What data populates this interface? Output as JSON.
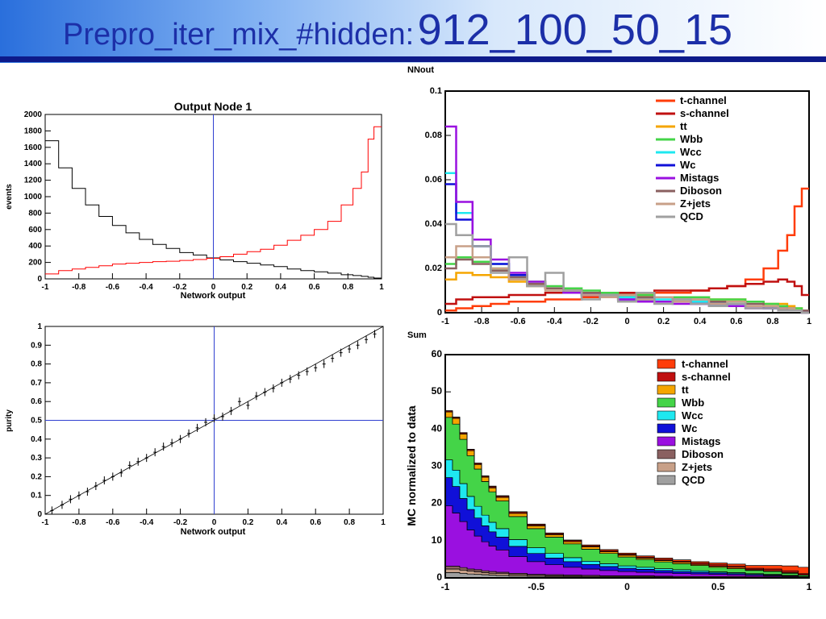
{
  "header": {
    "title_prefix": "Prepro_iter_mix_#hidden:",
    "title_suffix": "912_100_50_15"
  },
  "colors": {
    "t-channel": "#ff3d0a",
    "s-channel": "#c01010",
    "tt": "#f5a500",
    "Wbb": "#44d448",
    "Wcc": "#1ee8f0",
    "Wc": "#1010d8",
    "Mistags": "#9a10e0",
    "Diboson": "#8a6060",
    "Z+jets": "#c8a088",
    "QCD": "#a0a0a0"
  },
  "chart_data": [
    {
      "id": "output-node",
      "type": "line",
      "title": "Output Node 1",
      "xlabel": "Network output",
      "ylabel": "events",
      "xlim": [
        -1,
        1
      ],
      "ylim": [
        0,
        2000
      ],
      "xticks": [
        "-1",
        "-0.8",
        "-0.6",
        "-0.4",
        "-0.2",
        "0",
        "0.2",
        "0.4",
        "0.6",
        "0.8",
        "1"
      ],
      "yticks": [
        "0",
        "200",
        "400",
        "600",
        "800",
        "1000",
        "1200",
        "1400",
        "1600",
        "1800",
        "2000"
      ],
      "vline": 0,
      "x": [
        -0.96,
        -0.88,
        -0.8,
        -0.72,
        -0.64,
        -0.56,
        -0.48,
        -0.4,
        -0.32,
        -0.24,
        -0.16,
        -0.08,
        0,
        0.08,
        0.16,
        0.24,
        0.32,
        0.4,
        0.48,
        0.56,
        0.64,
        0.72,
        0.8,
        0.86,
        0.9,
        0.94,
        0.97
      ],
      "series": [
        {
          "color": "black",
          "values": [
            1680,
            1350,
            1100,
            900,
            760,
            650,
            560,
            480,
            420,
            370,
            320,
            290,
            255,
            230,
            210,
            190,
            170,
            150,
            120,
            100,
            85,
            70,
            50,
            40,
            30,
            20,
            10
          ]
        },
        {
          "color": "red",
          "values": [
            60,
            100,
            120,
            140,
            160,
            180,
            190,
            200,
            210,
            215,
            225,
            235,
            250,
            270,
            300,
            330,
            360,
            410,
            470,
            530,
            600,
            700,
            900,
            1100,
            1300,
            1700,
            1850
          ]
        }
      ]
    },
    {
      "id": "purity",
      "type": "scatter",
      "xlabel": "Network output",
      "ylabel": "purity",
      "xlim": [
        -1,
        1
      ],
      "ylim": [
        0,
        1
      ],
      "xticks": [
        "-1",
        "-0.8",
        "-0.6",
        "-0.4",
        "-0.2",
        "0",
        "0.2",
        "0.4",
        "0.6",
        "0.8",
        "1"
      ],
      "yticks": [
        "0",
        "0.1",
        "0.2",
        "0.3",
        "0.4",
        "0.5",
        "0.6",
        "0.7",
        "0.8",
        "0.9",
        "1"
      ],
      "vline": 0,
      "hline": 0.5,
      "fit": [
        [
          -1,
          0
        ],
        [
          1,
          1
        ]
      ],
      "x": [
        -0.96,
        -0.9,
        -0.85,
        -0.8,
        -0.75,
        -0.7,
        -0.65,
        -0.6,
        -0.55,
        -0.5,
        -0.45,
        -0.4,
        -0.35,
        -0.3,
        -0.25,
        -0.2,
        -0.15,
        -0.1,
        -0.05,
        0,
        0.05,
        0.1,
        0.15,
        0.2,
        0.25,
        0.3,
        0.35,
        0.4,
        0.45,
        0.5,
        0.55,
        0.6,
        0.65,
        0.7,
        0.75,
        0.8,
        0.85,
        0.9,
        0.95
      ],
      "y": [
        0.02,
        0.05,
        0.08,
        0.1,
        0.12,
        0.15,
        0.18,
        0.2,
        0.22,
        0.26,
        0.28,
        0.3,
        0.33,
        0.36,
        0.38,
        0.4,
        0.43,
        0.46,
        0.49,
        0.51,
        0.52,
        0.55,
        0.6,
        0.58,
        0.63,
        0.65,
        0.67,
        0.7,
        0.72,
        0.74,
        0.76,
        0.78,
        0.8,
        0.83,
        0.86,
        0.88,
        0.9,
        0.93,
        0.96
      ]
    },
    {
      "id": "nnout",
      "type": "line",
      "title": "NNout",
      "xlim": [
        -1,
        1
      ],
      "ylim": [
        0,
        0.1
      ],
      "xticks": [
        "-1",
        "-0.8",
        "-0.6",
        "-0.4",
        "-0.2",
        "0",
        "0.2",
        "0.4",
        "0.6",
        "0.8",
        "1"
      ],
      "yticks": [
        "0",
        "0.02",
        "0.04",
        "0.06",
        "0.08",
        "0.1"
      ],
      "legend": [
        "t-channel",
        "s-channel",
        "tt",
        "Wbb",
        "Wcc",
        "Wc",
        "Mistags",
        "Diboson",
        "Z+jets",
        "QCD"
      ],
      "x": [
        -0.98,
        -0.9,
        -0.8,
        -0.7,
        -0.6,
        -0.5,
        -0.4,
        -0.3,
        -0.2,
        -0.1,
        0,
        0.1,
        0.2,
        0.3,
        0.4,
        0.5,
        0.6,
        0.7,
        0.8,
        0.86,
        0.9,
        0.94,
        0.98
      ],
      "series": [
        {
          "name": "t-channel",
          "values": [
            0.001,
            0.002,
            0.003,
            0.004,
            0.005,
            0.005,
            0.006,
            0.006,
            0.007,
            0.007,
            0.008,
            0.008,
            0.009,
            0.009,
            0.01,
            0.011,
            0.012,
            0.015,
            0.02,
            0.028,
            0.035,
            0.048,
            0.056
          ]
        },
        {
          "name": "s-channel",
          "values": [
            0.004,
            0.006,
            0.007,
            0.007,
            0.008,
            0.008,
            0.009,
            0.009,
            0.009,
            0.009,
            0.009,
            0.009,
            0.01,
            0.01,
            0.01,
            0.011,
            0.012,
            0.013,
            0.014,
            0.015,
            0.014,
            0.012,
            0.008
          ]
        },
        {
          "name": "tt",
          "values": [
            0.015,
            0.018,
            0.017,
            0.016,
            0.014,
            0.012,
            0.011,
            0.01,
            0.009,
            0.009,
            0.008,
            0.008,
            0.007,
            0.007,
            0.007,
            0.006,
            0.006,
            0.005,
            0.004,
            0.004,
            0.003,
            0.002,
            0.001
          ]
        },
        {
          "name": "Wbb",
          "values": [
            0.022,
            0.025,
            0.023,
            0.02,
            0.017,
            0.014,
            0.012,
            0.011,
            0.01,
            0.009,
            0.008,
            0.008,
            0.007,
            0.007,
            0.007,
            0.006,
            0.006,
            0.005,
            0.004,
            0.003,
            0.002,
            0.002,
            0.001
          ]
        },
        {
          "name": "Wcc",
          "values": [
            0.063,
            0.045,
            0.03,
            0.022,
            0.016,
            0.013,
            0.011,
            0.009,
            0.008,
            0.008,
            0.007,
            0.006,
            0.006,
            0.005,
            0.005,
            0.004,
            0.004,
            0.003,
            0.002,
            0.002,
            0.001,
            0.001,
            0.0
          ]
        },
        {
          "name": "Wc",
          "values": [
            0.058,
            0.042,
            0.03,
            0.022,
            0.017,
            0.013,
            0.011,
            0.009,
            0.008,
            0.007,
            0.006,
            0.006,
            0.005,
            0.005,
            0.004,
            0.004,
            0.003,
            0.003,
            0.002,
            0.002,
            0.001,
            0.001,
            0.0
          ]
        },
        {
          "name": "Mistags",
          "values": [
            0.084,
            0.05,
            0.033,
            0.024,
            0.018,
            0.014,
            0.011,
            0.009,
            0.008,
            0.007,
            0.006,
            0.005,
            0.005,
            0.004,
            0.004,
            0.003,
            0.003,
            0.002,
            0.002,
            0.001,
            0.001,
            0.001,
            0.0
          ]
        },
        {
          "name": "Diboson",
          "values": [
            0.02,
            0.024,
            0.022,
            0.019,
            0.016,
            0.013,
            0.011,
            0.01,
            0.009,
            0.008,
            0.008,
            0.007,
            0.007,
            0.006,
            0.006,
            0.005,
            0.005,
            0.004,
            0.003,
            0.002,
            0.002,
            0.001,
            0.001
          ]
        },
        {
          "name": "Z+jets",
          "values": [
            0.025,
            0.03,
            0.025,
            0.02,
            0.015,
            0.012,
            0.01,
            0.01,
            0.008,
            0.007,
            0.008,
            0.006,
            0.007,
            0.005,
            0.006,
            0.004,
            0.005,
            0.003,
            0.003,
            0.002,
            0.002,
            0.001,
            0.0
          ]
        },
        {
          "name": "QCD",
          "values": [
            0.04,
            0.035,
            0.03,
            0.018,
            0.025,
            0.012,
            0.018,
            0.01,
            0.006,
            0.008,
            0.005,
            0.009,
            0.004,
            0.006,
            0.004,
            0.003,
            0.004,
            0.002,
            0.002,
            0.001,
            0.001,
            0.001,
            0.0
          ]
        }
      ]
    },
    {
      "id": "sum",
      "type": "area",
      "title": "Sum",
      "ylabel": "MC normalized to data",
      "xlim": [
        -1,
        1
      ],
      "ylim": [
        0,
        63
      ],
      "xticks": [
        "-1",
        "-0.5",
        "0",
        "0.5",
        "1"
      ],
      "yticks": [
        "0",
        "10",
        "20",
        "30",
        "40",
        "50",
        "60"
      ],
      "legend": [
        "t-channel",
        "s-channel",
        "tt",
        "Wbb",
        "Wcc",
        "Wc",
        "Mistags",
        "Diboson",
        "Z+jets",
        "QCD"
      ],
      "x": [
        -0.98,
        -0.94,
        -0.9,
        -0.86,
        -0.82,
        -0.78,
        -0.74,
        -0.7,
        -0.6,
        -0.5,
        -0.4,
        -0.3,
        -0.2,
        -0.1,
        0,
        0.1,
        0.2,
        0.3,
        0.4,
        0.5,
        0.6,
        0.7,
        0.8,
        0.9,
        0.98
      ],
      "series": [
        {
          "name": "QCD",
          "values": [
            1.5,
            1.5,
            1.3,
            1.1,
            1.0,
            0.9,
            0.8,
            0.7,
            0.5,
            0.4,
            0.3,
            0.3,
            0.2,
            0.2,
            0.2,
            0.2,
            0.1,
            0.1,
            0.1,
            0.1,
            0.1,
            0.1,
            0.1,
            0.1,
            0.0
          ]
        },
        {
          "name": "Z+jets",
          "values": [
            1.0,
            1.0,
            0.9,
            0.8,
            0.7,
            0.6,
            0.5,
            0.5,
            0.4,
            0.3,
            0.3,
            0.2,
            0.2,
            0.2,
            0.2,
            0.2,
            0.2,
            0.1,
            0.1,
            0.1,
            0.1,
            0.1,
            0.1,
            0.1,
            0.0
          ]
        },
        {
          "name": "Diboson",
          "values": [
            0.8,
            0.8,
            0.7,
            0.6,
            0.6,
            0.5,
            0.5,
            0.4,
            0.4,
            0.3,
            0.3,
            0.3,
            0.3,
            0.2,
            0.2,
            0.2,
            0.2,
            0.2,
            0.2,
            0.2,
            0.2,
            0.1,
            0.1,
            0.1,
            0.1
          ]
        },
        {
          "name": "Mistags",
          "values": [
            17,
            15,
            13,
            11,
            9.5,
            8.2,
            7.2,
            6.3,
            4.7,
            3.6,
            2.8,
            2.2,
            1.8,
            1.5,
            1.2,
            1.0,
            0.9,
            0.8,
            0.7,
            0.6,
            0.5,
            0.4,
            0.3,
            0.2,
            0.1
          ]
        },
        {
          "name": "Wc",
          "values": [
            8,
            7.5,
            6.5,
            5.8,
            5.1,
            4.5,
            4.0,
            3.6,
            2.9,
            2.3,
            1.9,
            1.6,
            1.3,
            1.1,
            0.9,
            0.8,
            0.7,
            0.6,
            0.5,
            0.4,
            0.3,
            0.3,
            0.2,
            0.1,
            0.1
          ]
        },
        {
          "name": "Wcc",
          "values": [
            5,
            4.6,
            4.2,
            3.7,
            3.3,
            3.0,
            2.7,
            2.4,
            1.9,
            1.6,
            1.3,
            1.1,
            0.9,
            0.8,
            0.7,
            0.6,
            0.5,
            0.5,
            0.4,
            0.3,
            0.3,
            0.2,
            0.2,
            0.1,
            0.1
          ]
        },
        {
          "name": "Wbb",
          "values": [
            12,
            13,
            12.5,
            11.5,
            10.5,
            9.5,
            8.6,
            7.8,
            6.5,
            5.4,
            4.6,
            3.9,
            3.4,
            2.9,
            2.5,
            2.2,
            1.9,
            1.7,
            1.5,
            1.3,
            1.1,
            0.9,
            0.8,
            0.6,
            0.4
          ]
        },
        {
          "name": "tt",
          "values": [
            1.5,
            1.6,
            1.5,
            1.4,
            1.3,
            1.2,
            1.1,
            1.0,
            0.9,
            0.8,
            0.7,
            0.6,
            0.6,
            0.5,
            0.5,
            0.4,
            0.4,
            0.4,
            0.3,
            0.3,
            0.3,
            0.2,
            0.2,
            0.2,
            0.1
          ]
        },
        {
          "name": "s-channel",
          "values": [
            0.3,
            0.3,
            0.3,
            0.3,
            0.3,
            0.3,
            0.3,
            0.3,
            0.3,
            0.3,
            0.3,
            0.3,
            0.3,
            0.3,
            0.3,
            0.3,
            0.3,
            0.3,
            0.4,
            0.4,
            0.4,
            0.4,
            0.5,
            0.5,
            0.3
          ]
        },
        {
          "name": "t-channel",
          "values": [
            0.1,
            0.1,
            0.1,
            0.1,
            0.1,
            0.1,
            0.2,
            0.2,
            0.2,
            0.2,
            0.2,
            0.2,
            0.3,
            0.3,
            0.3,
            0.3,
            0.4,
            0.4,
            0.4,
            0.5,
            0.6,
            0.8,
            1.0,
            1.4,
            1.8
          ]
        }
      ]
    }
  ]
}
